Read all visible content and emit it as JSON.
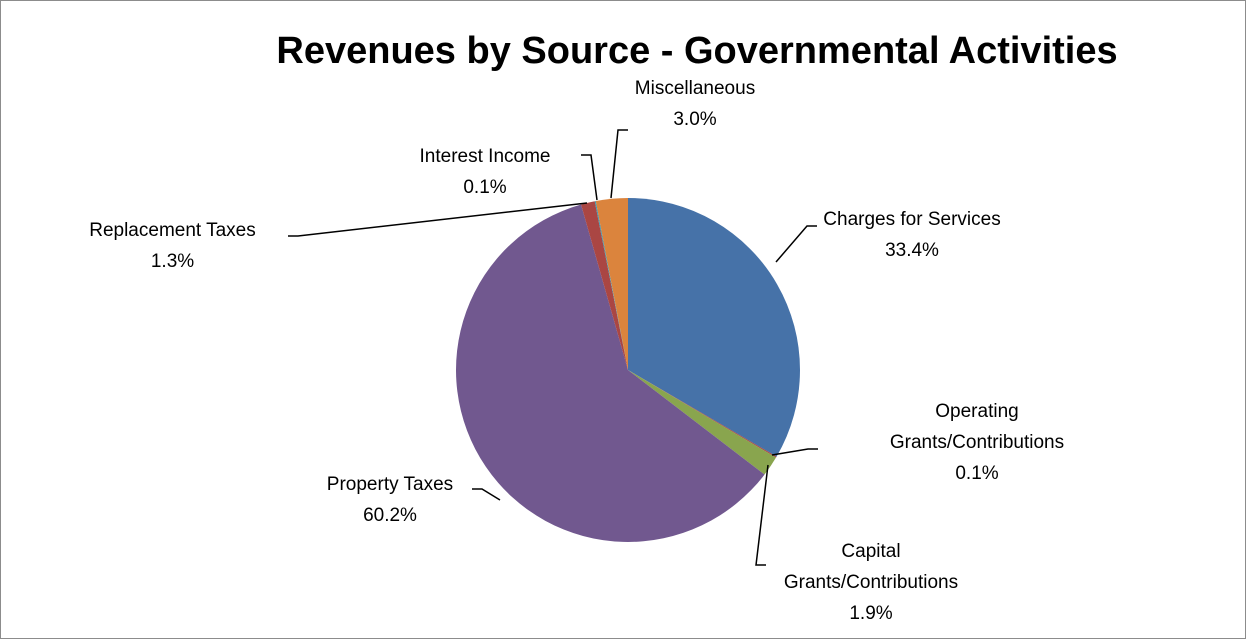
{
  "chart_data": {
    "type": "pie",
    "title": "Revenues by Source - Governmental Activities",
    "slices": [
      {
        "label_lines": [
          "Charges for Services"
        ],
        "pct_label": "33.4%",
        "value": 33.4,
        "color": "#4672a8"
      },
      {
        "label_lines": [
          "Operating",
          "Grants/Contributions"
        ],
        "pct_label": "0.1%",
        "value": 0.1,
        "color": "#a94441"
      },
      {
        "label_lines": [
          "Capital",
          "Grants/Contributions"
        ],
        "pct_label": "1.9%",
        "value": 1.9,
        "color": "#89a54e"
      },
      {
        "label_lines": [
          "Property Taxes"
        ],
        "pct_label": "60.2%",
        "value": 60.2,
        "color": "#71588f"
      },
      {
        "label_lines": [
          "Replacement Taxes"
        ],
        "pct_label": "1.3%",
        "value": 1.3,
        "color": "#aa4643"
      },
      {
        "label_lines": [
          "Interest Income"
        ],
        "pct_label": "0.1%",
        "value": 0.1,
        "color": "#4198af"
      },
      {
        "label_lines": [
          "Miscellaneous"
        ],
        "pct_label": "3.0%",
        "value": 3.0,
        "color": "#db843d"
      }
    ]
  }
}
